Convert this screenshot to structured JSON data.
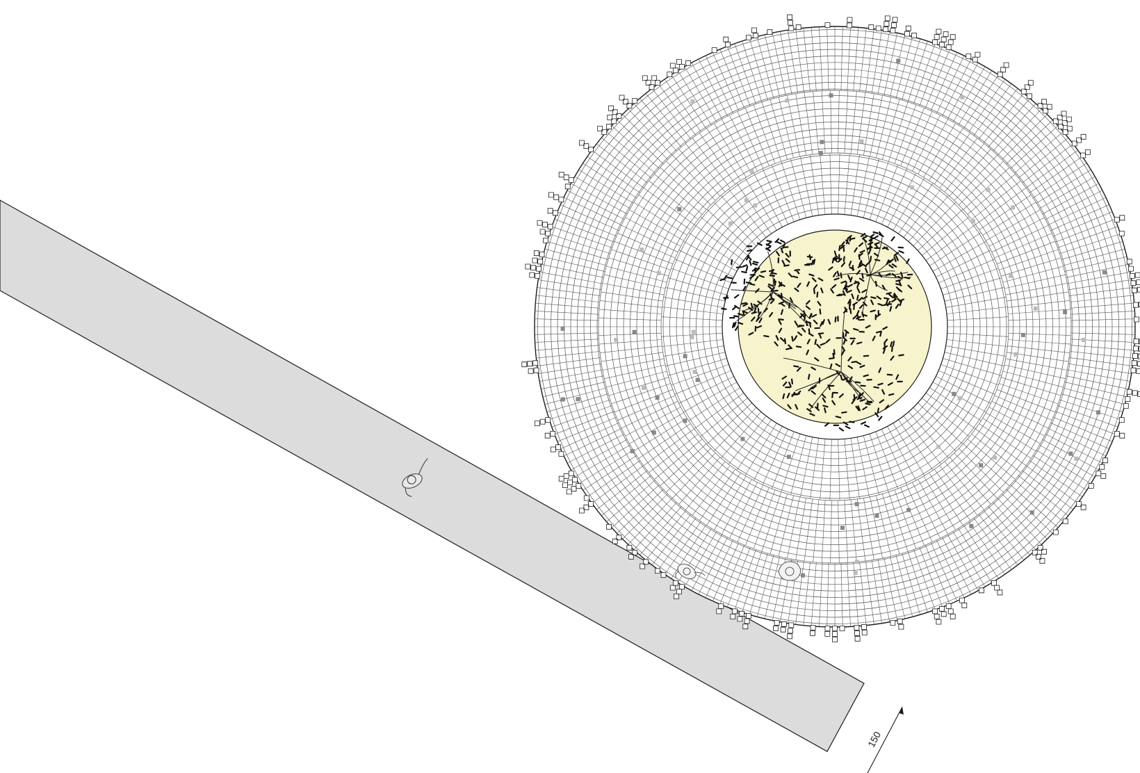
{
  "drawing": {
    "dimension_label": "150",
    "colors": {
      "background": "#ffffff",
      "walkway_fill": "#dcdcdc",
      "line": "#1a1a1a",
      "grid_line": "#555555",
      "planter_fill": "#f6f3cd",
      "ring_fill": "#ffffff",
      "foliage": "#111111"
    },
    "icons": {
      "walkway": "walkway-strip",
      "plaza": "radial-paving",
      "planter": "tree-planter",
      "trees": "tree-canopy-icon",
      "people": "person-topview-icon",
      "dimension": "dimension-line"
    }
  }
}
